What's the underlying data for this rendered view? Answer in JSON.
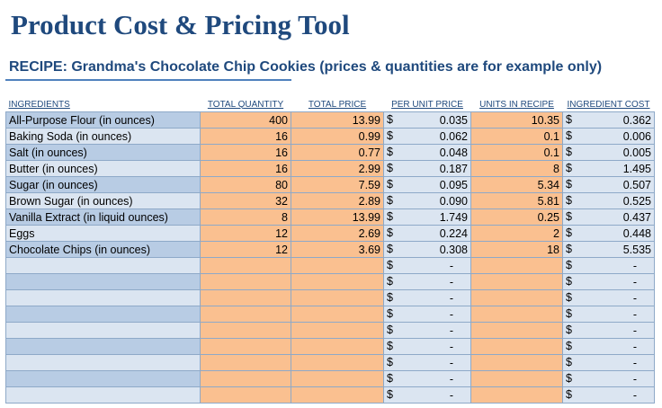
{
  "header": {
    "title": "Product Cost & Pricing Tool",
    "recipe_label": "RECIPE: Grandma's Chocolate Chip Cookies",
    "recipe_note": "(prices & quantities are for example only)"
  },
  "table": {
    "columns": [
      "INGREDIENTS",
      "TOTAL QUANTITY",
      "TOTAL PRICE",
      "PER UNIT PRICE",
      "UNITS IN RECIPE",
      "INGREDIENT COST"
    ],
    "currency_symbol": "$",
    "empty_value": "-",
    "rows": [
      {
        "ingredient": "All-Purpose Flour (in ounces)",
        "total_quantity": "400",
        "total_price": "13.99",
        "per_unit_price": "0.035",
        "units_in_recipe": "10.35",
        "ingredient_cost": "0.362"
      },
      {
        "ingredient": "Baking Soda (in ounces)",
        "total_quantity": "16",
        "total_price": "0.99",
        "per_unit_price": "0.062",
        "units_in_recipe": "0.1",
        "ingredient_cost": "0.006"
      },
      {
        "ingredient": "Salt (in ounces)",
        "total_quantity": "16",
        "total_price": "0.77",
        "per_unit_price": "0.048",
        "units_in_recipe": "0.1",
        "ingredient_cost": "0.005"
      },
      {
        "ingredient": "Butter (in ounces)",
        "total_quantity": "16",
        "total_price": "2.99",
        "per_unit_price": "0.187",
        "units_in_recipe": "8",
        "ingredient_cost": "1.495"
      },
      {
        "ingredient": "Sugar (in ounces)",
        "total_quantity": "80",
        "total_price": "7.59",
        "per_unit_price": "0.095",
        "units_in_recipe": "5.34",
        "ingredient_cost": "0.507"
      },
      {
        "ingredient": "Brown Sugar (in ounces)",
        "total_quantity": "32",
        "total_price": "2.89",
        "per_unit_price": "0.090",
        "units_in_recipe": "5.81",
        "ingredient_cost": "0.525"
      },
      {
        "ingredient": "Vanilla Extract (in liquid ounces)",
        "total_quantity": "8",
        "total_price": "13.99",
        "per_unit_price": "1.749",
        "units_in_recipe": "0.25",
        "ingredient_cost": "0.437"
      },
      {
        "ingredient": "Eggs",
        "total_quantity": "12",
        "total_price": "2.69",
        "per_unit_price": "0.224",
        "units_in_recipe": "2",
        "ingredient_cost": "0.448"
      },
      {
        "ingredient": "Chocolate Chips (in ounces)",
        "total_quantity": "12",
        "total_price": "3.69",
        "per_unit_price": "0.308",
        "units_in_recipe": "18",
        "ingredient_cost": "5.535"
      },
      {
        "ingredient": "",
        "total_quantity": "",
        "total_price": "",
        "per_unit_price": "",
        "units_in_recipe": "",
        "ingredient_cost": ""
      },
      {
        "ingredient": "",
        "total_quantity": "",
        "total_price": "",
        "per_unit_price": "",
        "units_in_recipe": "",
        "ingredient_cost": ""
      },
      {
        "ingredient": "",
        "total_quantity": "",
        "total_price": "",
        "per_unit_price": "",
        "units_in_recipe": "",
        "ingredient_cost": ""
      },
      {
        "ingredient": "",
        "total_quantity": "",
        "total_price": "",
        "per_unit_price": "",
        "units_in_recipe": "",
        "ingredient_cost": ""
      },
      {
        "ingredient": "",
        "total_quantity": "",
        "total_price": "",
        "per_unit_price": "",
        "units_in_recipe": "",
        "ingredient_cost": ""
      },
      {
        "ingredient": "",
        "total_quantity": "",
        "total_price": "",
        "per_unit_price": "",
        "units_in_recipe": "",
        "ingredient_cost": ""
      },
      {
        "ingredient": "",
        "total_quantity": "",
        "total_price": "",
        "per_unit_price": "",
        "units_in_recipe": "",
        "ingredient_cost": ""
      },
      {
        "ingredient": "",
        "total_quantity": "",
        "total_price": "",
        "per_unit_price": "",
        "units_in_recipe": "",
        "ingredient_cost": ""
      },
      {
        "ingredient": "",
        "total_quantity": "",
        "total_price": "",
        "per_unit_price": "",
        "units_in_recipe": "",
        "ingredient_cost": ""
      }
    ]
  },
  "colors": {
    "title": "#1f497d",
    "ingredient_fill": "#b8cce4",
    "ingredient_fill_alt": "#dbe5f1",
    "input_fill": "#fac090",
    "grid": "#8ea9c8"
  }
}
